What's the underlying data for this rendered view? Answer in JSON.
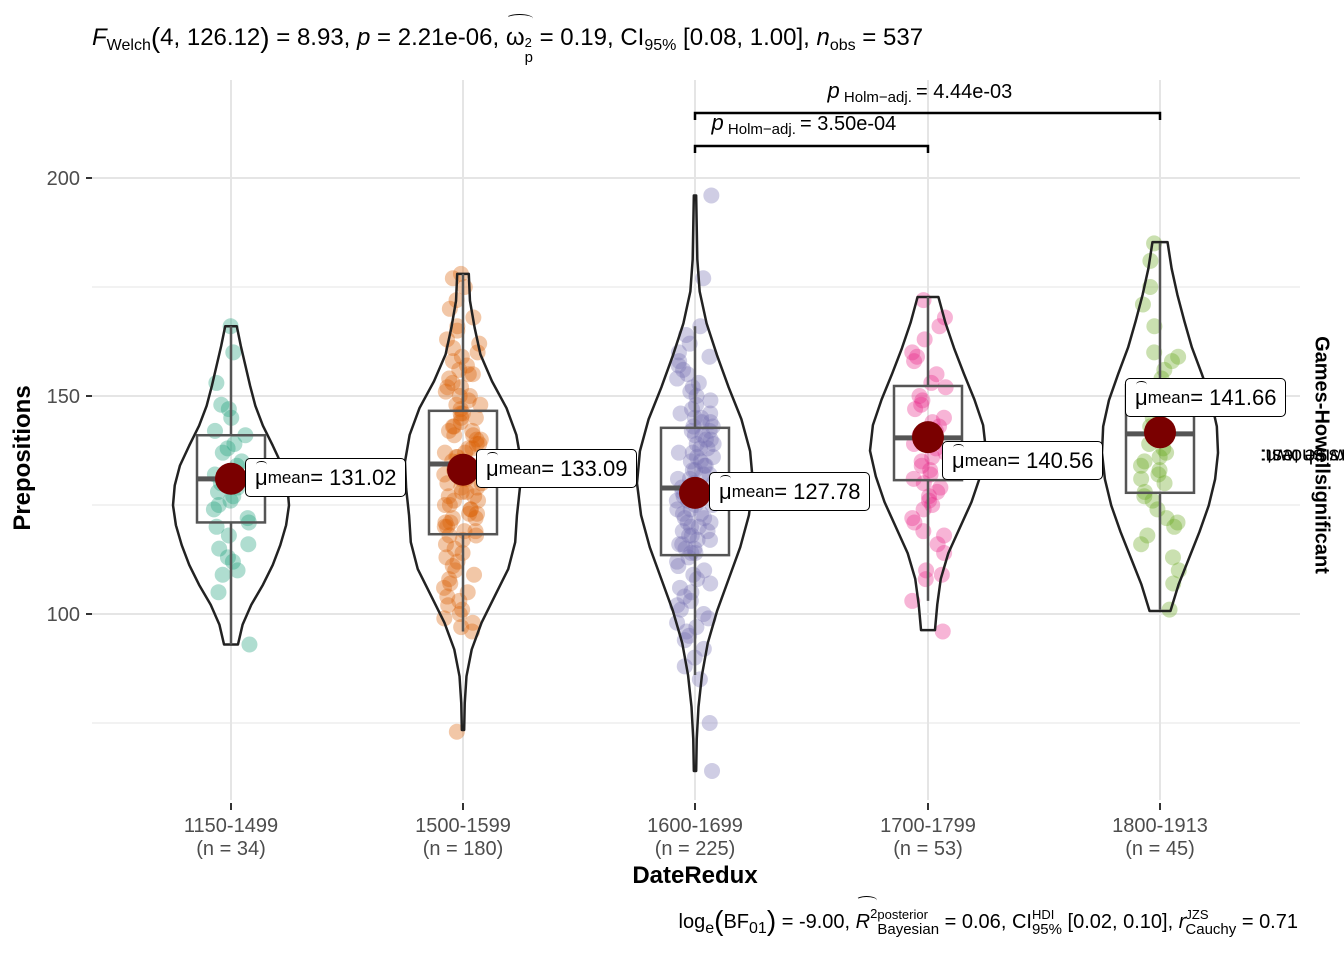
{
  "chart_data": {
    "type": "violin",
    "title": {
      "stat_name": "F",
      "stat_sub": "Welch",
      "df": "4, 126.12",
      "stat_value": "8.93",
      "p_value": "2.21e-06",
      "effsize_name": "ω",
      "effsize_sup": "2",
      "effsize_sub": "p",
      "effsize_value": "0.19",
      "ci_label": "CI",
      "ci_sub": "95%",
      "ci_range": "[0.08, 1.00]",
      "n_label": "n",
      "n_sub": "obs",
      "n_value": "537"
    },
    "caption": {
      "log_label": "log",
      "log_sub": "e",
      "bf_label": "BF",
      "bf_sub": "01",
      "bf_value": "-9.00",
      "r2_label": "R",
      "r2_sup": "2",
      "r2_top": "posterior",
      "r2_bottom": "Bayesian",
      "r2_value": "0.06",
      "ci_label": "CI",
      "ci_top": "HDI",
      "ci_bottom": "95%",
      "ci_range": "[0.02, 0.10]",
      "r_label": "r",
      "r_top": "JZS",
      "r_bottom": "Cauchy",
      "r_value": "0.71"
    },
    "xlabel": "DateRedux",
    "ylabel": "Prepositions",
    "ylim": [
      57,
      222
    ],
    "yticks": [
      100,
      150,
      200
    ],
    "y_minor": [
      75,
      125,
      175
    ],
    "grid": true,
    "right_note": {
      "prefix": "Pairwise test: ",
      "test": "Games-Howell",
      "middle": ", Bars shown: ",
      "shown": "significant"
    },
    "mean_label": {
      "symbol": "μ",
      "sub": "mean",
      "eq": " = "
    },
    "groups": [
      {
        "category": "1150-1499",
        "n_label": "(n = 34)",
        "color": "#1b9e77",
        "mean": 131.02,
        "mean_text": "131.02",
        "box": {
          "q1": 121,
          "median": 131,
          "q3": 141,
          "whisker_low": 93,
          "whisker_high": 166
        },
        "violin": {
          "min": 93,
          "max": 166,
          "profile": [
            0.12,
            0.2,
            0.35,
            0.55,
            0.72,
            0.85,
            0.95,
            1.0,
            0.97,
            0.88,
            0.72,
            0.55,
            0.42,
            0.33,
            0.25,
            0.17,
            0.1
          ]
        },
        "points": [
          166,
          160,
          153,
          148,
          147,
          145,
          142,
          141,
          139,
          138,
          137,
          135,
          134,
          132,
          131,
          130,
          129,
          128,
          127,
          126,
          125,
          124,
          122,
          121,
          120,
          118,
          116,
          115,
          113,
          112,
          110,
          109,
          105,
          93
        ]
      },
      {
        "category": "1500-1599",
        "n_label": "(n = 180)",
        "color": "#d95f02",
        "mean": 133.09,
        "mean_text": "133.09",
        "box": {
          "q1": 118.3,
          "median": 134.4,
          "q3": 146.6,
          "whisker_low": 96,
          "whisker_high": 178
        },
        "violin": {
          "min": 73.4,
          "max": 178,
          "profile": [
            0.02,
            0.03,
            0.06,
            0.15,
            0.32,
            0.55,
            0.78,
            0.9,
            0.93,
            0.98,
            1.0,
            0.92,
            0.75,
            0.5,
            0.3,
            0.2,
            0.12,
            0.1
          ]
        },
        "points": [
          178,
          177,
          175,
          172,
          170,
          168,
          166,
          165,
          163,
          162,
          161,
          160,
          159,
          158,
          157,
          156,
          155,
          155,
          154,
          153,
          152,
          152,
          151,
          150,
          150,
          149,
          148,
          148,
          147,
          146,
          146,
          145,
          145,
          144,
          143,
          143,
          142,
          142,
          141,
          141,
          140,
          140,
          139,
          139,
          138,
          138,
          137,
          137,
          136,
          136,
          135,
          135,
          134,
          134,
          133,
          133,
          132,
          132,
          131,
          131,
          130,
          130,
          129,
          129,
          128,
          128,
          127,
          127,
          126,
          126,
          125,
          125,
          124,
          124,
          123,
          123,
          122,
          122,
          121,
          121,
          120,
          120,
          119,
          119,
          118,
          118,
          117,
          116,
          115,
          114,
          113,
          112,
          111,
          110,
          109,
          108,
          107,
          106,
          105,
          104,
          103,
          102,
          101,
          100,
          99,
          98,
          97,
          96,
          73
        ]
      },
      {
        "category": "1600-1699",
        "n_label": "(n = 225)",
        "color": "#7570b3",
        "mean": 127.78,
        "mean_text": "127.78",
        "box": {
          "q1": 113.5,
          "median": 128.9,
          "q3": 142.7,
          "whisker_low": 86,
          "whisker_high": 166
        },
        "violin": {
          "min": 64,
          "max": 196,
          "profile": [
            0.02,
            0.03,
            0.06,
            0.12,
            0.22,
            0.38,
            0.58,
            0.78,
            0.93,
            1.0,
            0.95,
            0.8,
            0.58,
            0.38,
            0.2,
            0.08,
            0.04,
            0.03,
            0.02
          ]
        },
        "points": [
          196,
          177,
          166,
          164,
          162,
          160,
          159,
          158,
          157,
          156,
          155,
          154,
          153,
          152,
          151,
          150,
          149,
          148,
          147,
          146,
          146,
          145,
          145,
          144,
          144,
          143,
          143,
          142,
          142,
          141,
          141,
          140,
          140,
          139,
          139,
          138,
          138,
          137,
          137,
          136,
          136,
          135,
          135,
          134,
          134,
          133,
          133,
          132,
          132,
          131,
          131,
          130,
          130,
          129,
          129,
          128,
          128,
          127,
          127,
          126,
          126,
          125,
          125,
          124,
          124,
          123,
          123,
          122,
          122,
          121,
          121,
          120,
          120,
          119,
          119,
          118,
          118,
          117,
          117,
          116,
          116,
          115,
          115,
          114,
          114,
          113,
          112,
          111,
          110,
          109,
          108,
          107,
          106,
          105,
          104,
          103,
          102,
          101,
          100,
          99,
          98,
          97,
          96,
          95,
          94,
          92,
          90,
          88,
          85,
          75,
          64
        ]
      },
      {
        "category": "1700-1799",
        "n_label": "(n = 53)",
        "color": "#e7298a",
        "mean": 140.56,
        "mean_text": "140.56",
        "box": {
          "q1": 130.7,
          "median": 140.4,
          "q3": 152.3,
          "whisker_low": 103,
          "whisker_high": 172.7
        },
        "violin": {
          "min": 96.3,
          "max": 172.7,
          "profile": [
            0.12,
            0.16,
            0.22,
            0.35,
            0.55,
            0.75,
            0.9,
            1.0,
            0.95,
            0.8,
            0.62,
            0.45,
            0.3,
            0.18
          ]
        },
        "points": [
          172,
          168,
          166,
          163,
          160,
          159,
          158,
          155,
          153,
          152,
          150,
          149,
          148,
          147,
          145,
          144,
          143,
          142,
          141,
          140,
          139,
          138,
          137,
          136,
          135,
          134,
          133,
          132,
          131,
          130,
          129,
          128,
          127,
          126,
          125,
          124,
          122,
          121,
          119,
          118,
          116,
          114,
          110,
          109,
          108,
          103,
          96
        ]
      },
      {
        "category": "1800-1913",
        "n_label": "(n = 45)",
        "color": "#66a61e",
        "mean": 141.66,
        "mean_text": "141.66",
        "box": {
          "q1": 127.8,
          "median": 141.3,
          "q3": 152.5,
          "whisker_low": 101,
          "whisker_high": 185
        },
        "violin": {
          "min": 100.7,
          "max": 185.3,
          "profile": [
            0.18,
            0.32,
            0.5,
            0.68,
            0.84,
            0.95,
            1.0,
            0.98,
            0.88,
            0.72,
            0.55,
            0.42,
            0.3,
            0.2,
            0.13
          ]
        },
        "points": [
          185,
          181,
          175,
          171,
          166,
          160,
          159,
          158,
          156,
          154,
          152,
          150,
          148,
          146,
          145,
          143,
          141,
          140,
          139,
          138,
          137,
          136,
          135,
          134,
          133,
          132,
          131,
          130,
          128,
          127,
          126,
          124,
          122,
          121,
          120,
          118,
          116,
          113,
          110,
          107,
          101
        ]
      }
    ],
    "pairwise": [
      {
        "from": 2,
        "to": 3,
        "level": 1,
        "p_label": "p",
        "p_sub": "Holm−adj.",
        "p_value": "= 3.50e-04"
      },
      {
        "from": 2,
        "to": 4,
        "level": 2,
        "p_label": "p",
        "p_sub": "Holm−adj.",
        "p_value": "= 4.44e-03"
      }
    ]
  }
}
